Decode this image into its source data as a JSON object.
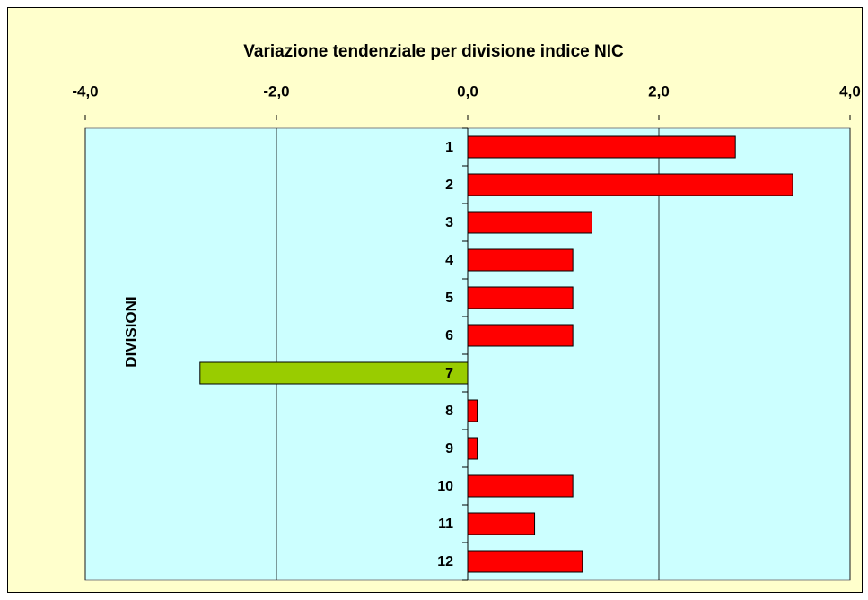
{
  "chart_data": {
    "type": "barh",
    "title": "Variazione tendenziale per divisione indice NIC",
    "y_label": "DIVISIONI",
    "categories": [
      "1",
      "2",
      "3",
      "4",
      "5",
      "6",
      "7",
      "8",
      "9",
      "10",
      "11",
      "12"
    ],
    "values": [
      2.8,
      3.4,
      1.3,
      1.1,
      1.1,
      1.1,
      -2.8,
      0.1,
      0.1,
      1.1,
      0.7,
      1.2
    ],
    "color": "#ff0000",
    "negative_color": "#99cc00",
    "xlim": [
      -4,
      4
    ],
    "xticks": [
      {
        "value": -4,
        "label": "-4,0"
      },
      {
        "value": -2,
        "label": "-2,0"
      },
      {
        "value": 0,
        "label": "0,0"
      },
      {
        "value": 2,
        "label": "2,0"
      },
      {
        "value": 4,
        "label": "4,0"
      }
    ],
    "grid": true
  }
}
